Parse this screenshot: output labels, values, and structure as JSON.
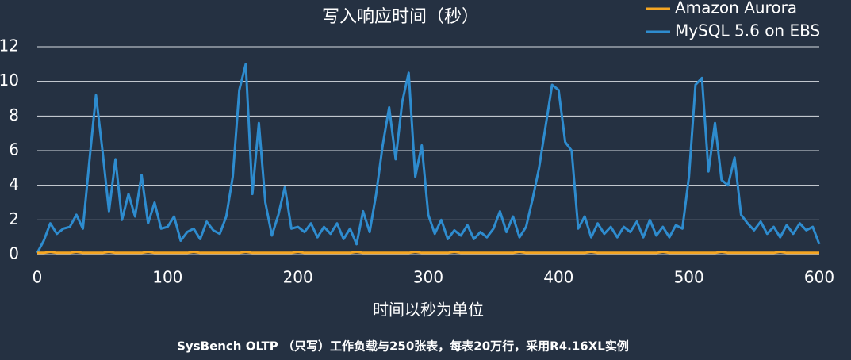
{
  "chart_data": {
    "type": "line",
    "title": "写入响应时间（秒）",
    "x_label": "时间以秒为单位",
    "footnote": "SysBench OLTP （只写）工作负载与250张表，每表20万行，采用R4.16XL实例",
    "x": [
      0,
      5,
      10,
      15,
      20,
      25,
      30,
      35,
      40,
      45,
      50,
      55,
      60,
      65,
      70,
      75,
      80,
      85,
      90,
      95,
      100,
      105,
      110,
      115,
      120,
      125,
      130,
      135,
      140,
      145,
      150,
      155,
      160,
      165,
      170,
      175,
      180,
      185,
      190,
      195,
      200,
      205,
      210,
      215,
      220,
      225,
      230,
      235,
      240,
      245,
      250,
      255,
      260,
      265,
      270,
      275,
      280,
      285,
      290,
      295,
      300,
      305,
      310,
      315,
      320,
      325,
      330,
      335,
      340,
      345,
      350,
      355,
      360,
      365,
      370,
      375,
      380,
      385,
      390,
      395,
      400,
      405,
      410,
      415,
      420,
      425,
      430,
      435,
      440,
      445,
      450,
      455,
      460,
      465,
      470,
      475,
      480,
      485,
      490,
      495,
      500,
      505,
      510,
      515,
      520,
      525,
      530,
      535,
      540,
      545,
      550,
      555,
      560,
      565,
      570,
      575,
      580,
      585,
      590,
      595,
      600
    ],
    "series": [
      {
        "name": "Amazon Aurora",
        "color": "#f5a623",
        "values": [
          0.1,
          0.1,
          0.15,
          0.1,
          0.1,
          0.1,
          0.15,
          0.1,
          0.1,
          0.1,
          0.1,
          0.15,
          0.1,
          0.1,
          0.1,
          0.1,
          0.1,
          0.15,
          0.1,
          0.1,
          0.1,
          0.1,
          0.1,
          0.1,
          0.15,
          0.1,
          0.1,
          0.1,
          0.1,
          0.1,
          0.1,
          0.1,
          0.15,
          0.1,
          0.1,
          0.1,
          0.1,
          0.1,
          0.1,
          0.1,
          0.15,
          0.1,
          0.1,
          0.1,
          0.1,
          0.1,
          0.1,
          0.1,
          0.1,
          0.15,
          0.1,
          0.1,
          0.1,
          0.1,
          0.1,
          0.1,
          0.1,
          0.1,
          0.15,
          0.1,
          0.1,
          0.1,
          0.1,
          0.1,
          0.15,
          0.1,
          0.1,
          0.1,
          0.1,
          0.1,
          0.1,
          0.1,
          0.1,
          0.1,
          0.15,
          0.1,
          0.1,
          0.1,
          0.1,
          0.1,
          0.1,
          0.1,
          0.1,
          0.1,
          0.1,
          0.15,
          0.1,
          0.1,
          0.1,
          0.1,
          0.1,
          0.1,
          0.1,
          0.1,
          0.1,
          0.1,
          0.15,
          0.1,
          0.1,
          0.1,
          0.1,
          0.1,
          0.1,
          0.1,
          0.1,
          0.15,
          0.1,
          0.1,
          0.1,
          0.1,
          0.1,
          0.1,
          0.1,
          0.1,
          0.15,
          0.1,
          0.1,
          0.1,
          0.1,
          0.1,
          0.1
        ]
      },
      {
        "name": "MySQL 5.6 on EBS",
        "color": "#2e8ccf",
        "values": [
          0.1,
          0.8,
          1.8,
          1.2,
          1.5,
          1.6,
          2.3,
          1.5,
          5.4,
          9.2,
          6.0,
          2.5,
          5.5,
          2.0,
          3.5,
          2.2,
          4.6,
          1.8,
          3.0,
          1.5,
          1.6,
          2.2,
          0.8,
          1.3,
          1.5,
          0.9,
          1.9,
          1.4,
          1.2,
          2.2,
          4.5,
          9.5,
          11.0,
          3.5,
          7.6,
          3.0,
          1.1,
          2.3,
          3.9,
          1.5,
          1.6,
          1.3,
          1.8,
          1.0,
          1.6,
          1.2,
          1.8,
          0.9,
          1.5,
          0.6,
          2.5,
          1.3,
          3.5,
          6.3,
          8.5,
          5.5,
          8.8,
          10.5,
          4.5,
          6.3,
          2.3,
          1.2,
          2.0,
          0.9,
          1.4,
          1.1,
          1.7,
          0.9,
          1.3,
          1.0,
          1.5,
          2.5,
          1.3,
          2.2,
          1.0,
          1.6,
          3.2,
          5.0,
          7.4,
          9.8,
          9.5,
          6.5,
          6.0,
          1.5,
          2.2,
          1.0,
          1.8,
          1.2,
          1.6,
          1.0,
          1.6,
          1.3,
          1.9,
          1.0,
          2.0,
          1.1,
          1.6,
          1.0,
          1.7,
          1.5,
          4.5,
          9.8,
          10.2,
          4.8,
          7.6,
          4.3,
          4.0,
          5.6,
          2.3,
          1.8,
          1.4,
          1.9,
          1.2,
          1.6,
          1.0,
          1.7,
          1.2,
          1.8,
          1.4,
          1.6,
          0.6
        ]
      }
    ],
    "xlim": [
      0,
      600
    ],
    "xticks": [
      0,
      100,
      200,
      300,
      400,
      500,
      600
    ],
    "ylim": [
      0,
      12
    ],
    "yticks": [
      0,
      2,
      4,
      6,
      8,
      10,
      12
    ],
    "grid": true,
    "legend": "top-right"
  }
}
